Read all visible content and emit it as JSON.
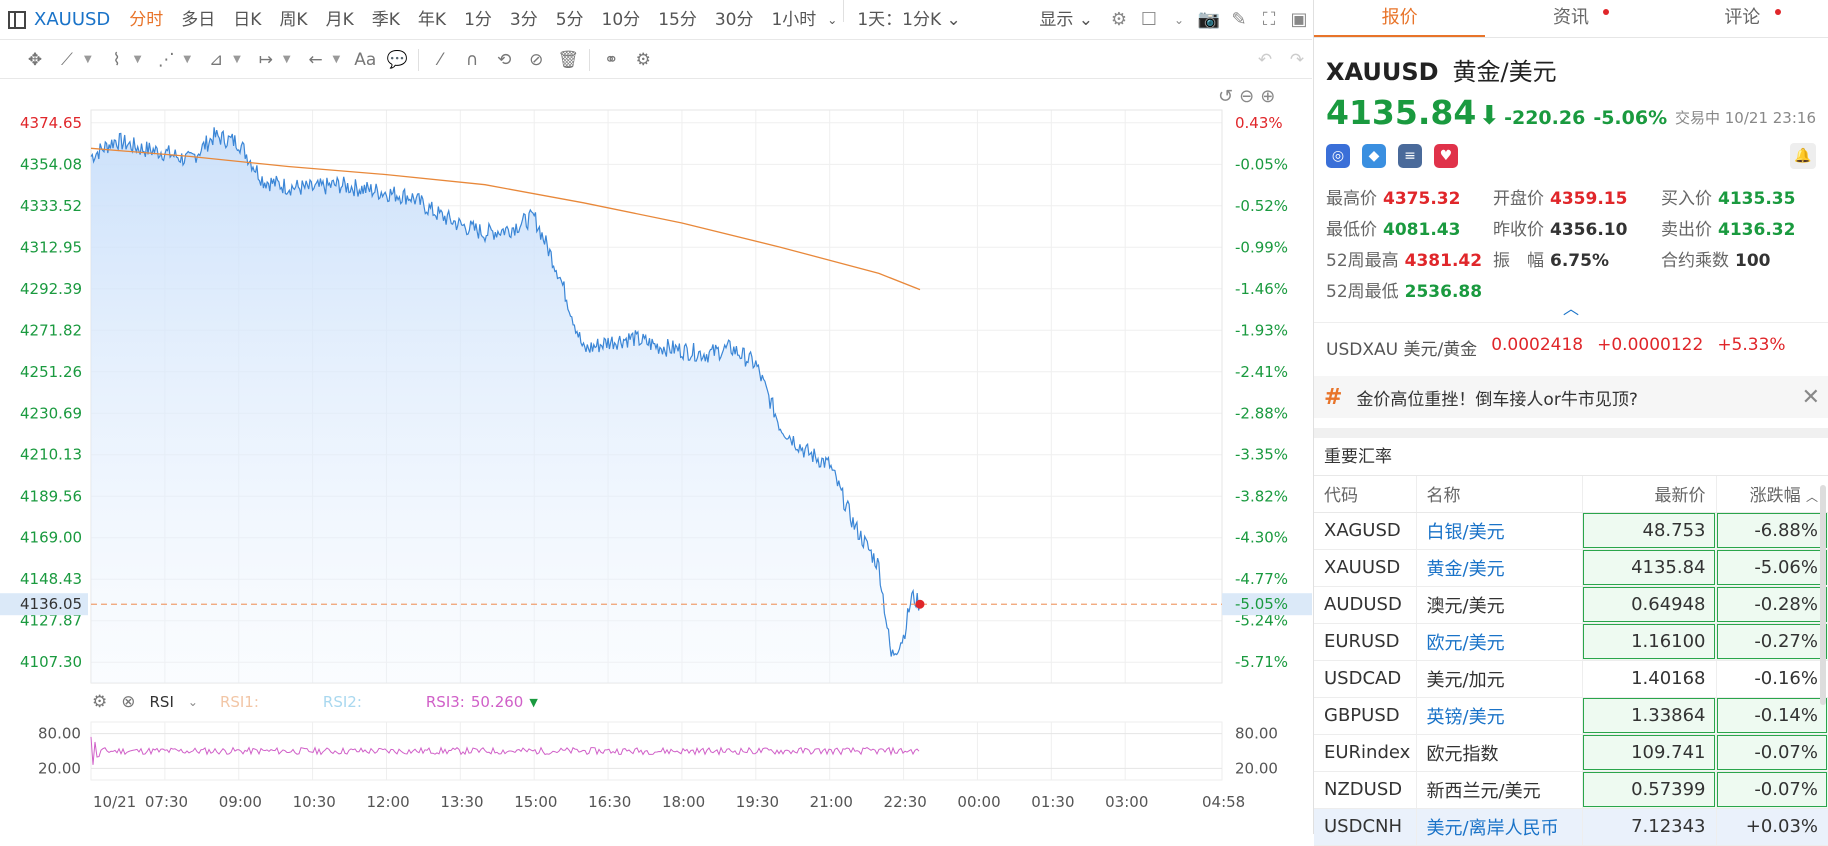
{
  "toolbar": {
    "symbol": "XAUUSD",
    "timeframes": [
      "分时",
      "多日",
      "日K",
      "周K",
      "月K",
      "季K",
      "年K",
      "1分",
      "3分",
      "5分",
      "10分",
      "15分",
      "30分",
      "1小时"
    ],
    "active_timeframe": "分时",
    "range_select": "1天：1分K",
    "display_label": "显示"
  },
  "chart": {
    "price_labels": [
      "4374.65",
      "4354.08",
      "4333.52",
      "4312.95",
      "4292.39",
      "4271.82",
      "4251.26",
      "4230.69",
      "4210.13",
      "4189.56",
      "4169.00",
      "4148.43",
      "4127.87",
      "4107.30"
    ],
    "pct_labels": [
      "0.43%",
      "-0.05%",
      "-0.52%",
      "-0.99%",
      "-1.46%",
      "-1.93%",
      "-2.41%",
      "-2.88%",
      "-3.35%",
      "-3.82%",
      "-4.30%",
      "-4.77%",
      "-5.24%",
      "-5.71%"
    ],
    "current_price_label": "4136.05",
    "current_pct_label": "-5.05%",
    "time_labels": [
      "10/21",
      "07:30",
      "09:00",
      "10:30",
      "12:00",
      "13:30",
      "15:00",
      "16:30",
      "18:00",
      "19:30",
      "21:00",
      "22:30",
      "00:00",
      "01:30",
      "03:00",
      "04:58"
    ],
    "rsi": {
      "name": "RSI",
      "rsi1_label": "RSI1:",
      "rsi2_label": "RSI2:",
      "rsi3_label": "RSI3:",
      "rsi3_value": "50.260",
      "levels": [
        "80.00",
        "20.00"
      ]
    },
    "colors": {
      "price_line": "#3b86d6",
      "avg_line": "#e8883a",
      "up": "#e0262a",
      "down": "#1a9a3f",
      "rsi3": "#d060c8"
    }
  },
  "chart_data": {
    "type": "line",
    "title": "",
    "x_start": "10/21 06:00",
    "x_end": "10/22 04:58",
    "ylim": [
      4097,
      4381
    ],
    "reference_close": 4356.1,
    "series": [
      {
        "name": "",
        "x": [
          "06:00",
          "06:30",
          "07:00",
          "07:30",
          "08:00",
          "08:30",
          "09:00",
          "09:30",
          "10:00",
          "10:30",
          "11:00",
          "11:30",
          "12:00",
          "12:30",
          "13:00",
          "13:30",
          "14:00",
          "14:30",
          "15:00",
          "15:30",
          "16:00",
          "16:30",
          "17:00",
          "17:30",
          "18:00",
          "18:30",
          "19:00",
          "19:30",
          "20:00",
          "20:30",
          "21:00",
          "21:30",
          "22:00",
          "22:15",
          "22:30",
          "22:40",
          "22:50"
        ],
        "y": [
          4358,
          4366,
          4362,
          4360,
          4356,
          4368,
          4365,
          4346,
          4343,
          4342,
          4344,
          4342,
          4340,
          4338,
          4330,
          4324,
          4320,
          4322,
          4328,
          4300,
          4262,
          4266,
          4268,
          4264,
          4262,
          4260,
          4263,
          4255,
          4224,
          4212,
          4205,
          4175,
          4155,
          4110,
          4120,
          4140,
          4136
        ]
      },
      {
        "name": "",
        "x": [
          "06:00",
          "08:00",
          "10:00",
          "12:00",
          "14:00",
          "16:00",
          "18:00",
          "20:00",
          "22:00",
          "22:50"
        ],
        "y": [
          4362,
          4358,
          4353,
          4349,
          4344,
          4335,
          4325,
          4313,
          4300,
          4292
        ]
      }
    ],
    "rsi": {
      "levels": [
        20,
        80
      ],
      "rsi3": 50.26
    }
  },
  "quote": {
    "tabs": [
      "报价",
      "资讯",
      "评论"
    ],
    "code": "XAUUSD",
    "name": "黄金/美元",
    "price": "4135.84",
    "change": "-220.26",
    "change_pct": "-5.06%",
    "status": "交易中 10/21 23:16",
    "stats": [
      {
        "label": "最高价",
        "value": "4375.32",
        "dir": "up"
      },
      {
        "label": "开盘价",
        "value": "4359.15",
        "dir": "up"
      },
      {
        "label": "买入价",
        "value": "4135.35",
        "dir": "dn"
      },
      {
        "label": "最低价",
        "value": "4081.43",
        "dir": "dn"
      },
      {
        "label": "昨收价",
        "value": "4356.10",
        "dir": "nu"
      },
      {
        "label": "卖出价",
        "value": "4136.32",
        "dir": "dn"
      },
      {
        "label": "52周最高",
        "value": "4381.42",
        "dir": "up"
      },
      {
        "label": "振　幅",
        "value": "6.75%",
        "dir": "nu"
      },
      {
        "label": "合约乘数",
        "value": "100",
        "dir": "nu"
      },
      {
        "label": "52周最低",
        "value": "2536.88",
        "dir": "dn"
      }
    ],
    "inverse": {
      "name": "USDXAU 美元/黄金",
      "price": "0.0002418",
      "change": "+0.0000122",
      "pct": "+5.33%"
    },
    "news": "金价高位重挫！倒车接人or牛市见顶?"
  },
  "rates": {
    "title": "重要汇率",
    "headers": [
      "代码",
      "名称",
      "最新价",
      "涨跌幅"
    ],
    "rows": [
      {
        "code": "XAGUSD",
        "name": "白银/美元",
        "price": "48.753",
        "chg": "-6.88%",
        "link": true,
        "box": true
      },
      {
        "code": "XAUUSD",
        "name": "黄金/美元",
        "price": "4135.84",
        "chg": "-5.06%",
        "link": true,
        "box": true
      },
      {
        "code": "AUDUSD",
        "name": "澳元/美元",
        "price": "0.64948",
        "chg": "-0.28%",
        "link": false,
        "box": true
      },
      {
        "code": "EURUSD",
        "name": "欧元/美元",
        "price": "1.16100",
        "chg": "-0.27%",
        "link": true,
        "box": true
      },
      {
        "code": "USDCAD",
        "name": "美元/加元",
        "price": "1.40168",
        "chg": "-0.16%",
        "link": false,
        "box": false
      },
      {
        "code": "GBPUSD",
        "name": "英镑/美元",
        "price": "1.33864",
        "chg": "-0.14%",
        "link": true,
        "box": true
      },
      {
        "code": "EURindex",
        "name": "欧元指数",
        "price": "109.741",
        "chg": "-0.07%",
        "link": false,
        "box": true
      },
      {
        "code": "NZDUSD",
        "name": "新西兰元/美元",
        "price": "0.57399",
        "chg": "-0.07%",
        "link": false,
        "box": true
      },
      {
        "code": "USDCNH",
        "name": "美元/离岸人民币",
        "price": "7.12343",
        "chg": "+0.03%",
        "link": true,
        "box": false
      }
    ]
  }
}
